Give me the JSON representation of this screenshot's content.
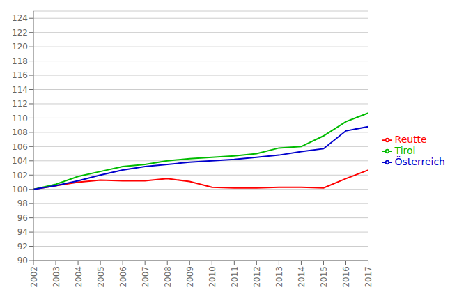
{
  "chart_data": {
    "type": "line",
    "x": [
      2002,
      2003,
      2004,
      2005,
      2006,
      2007,
      2008,
      2009,
      2010,
      2011,
      2012,
      2013,
      2014,
      2015,
      2016,
      2017
    ],
    "series": [
      {
        "name": "Reutte",
        "color": "#FF0000",
        "values": [
          100.0,
          100.5,
          101.0,
          101.3,
          101.2,
          101.2,
          101.5,
          101.1,
          100.3,
          100.2,
          100.2,
          100.3,
          100.3,
          100.2,
          101.5,
          102.7
        ]
      },
      {
        "name": "Tirol",
        "color": "#00BB00",
        "values": [
          100.0,
          100.7,
          101.8,
          102.5,
          103.2,
          103.5,
          104.0,
          104.3,
          104.5,
          104.7,
          105.0,
          105.8,
          106.0,
          107.5,
          109.5,
          110.7
        ]
      },
      {
        "name": "Österreich",
        "color": "#0000CC",
        "values": [
          100.0,
          100.5,
          101.2,
          102.0,
          102.7,
          103.2,
          103.5,
          103.8,
          104.0,
          104.2,
          104.5,
          104.8,
          105.3,
          105.7,
          108.2,
          108.8
        ]
      }
    ],
    "xlim": [
      2002,
      2017
    ],
    "xticks": [
      2002,
      2003,
      2004,
      2005,
      2006,
      2007,
      2008,
      2009,
      2010,
      2011,
      2012,
      2013,
      2014,
      2015,
      2016,
      2017
    ],
    "ylim": [
      90,
      125
    ],
    "yticks": [
      90,
      92,
      94,
      96,
      98,
      100,
      102,
      104,
      106,
      108,
      110,
      112,
      114,
      116,
      118,
      120,
      122,
      124
    ],
    "grid": true,
    "legend": "right"
  }
}
